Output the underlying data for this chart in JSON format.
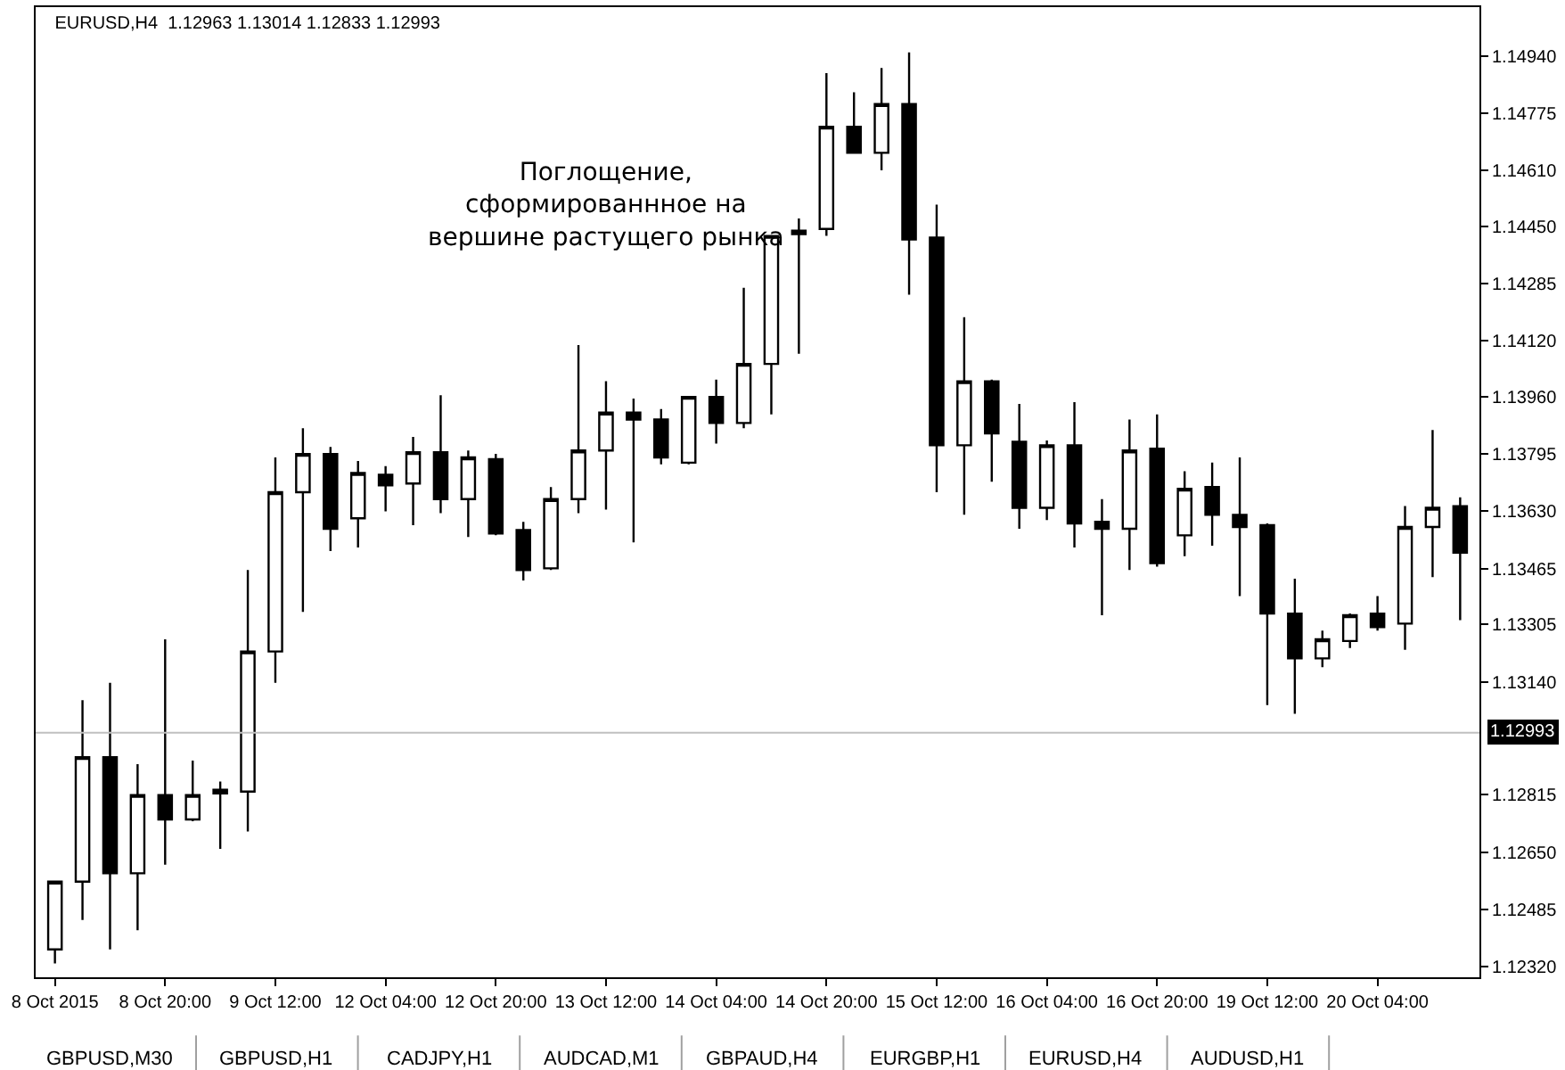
{
  "chart_data": {
    "type": "candlestick",
    "title": "EURUSD,H4  1.12963 1.13014 1.12833 1.12993",
    "categories": [
      "8 Oct 2015",
      null,
      null,
      null,
      "8 Oct 20:00",
      null,
      null,
      null,
      "9 Oct 12:00",
      null,
      null,
      null,
      "12 Oct 04:00",
      null,
      null,
      null,
      "12 Oct 20:00",
      null,
      null,
      null,
      "13 Oct 12:00",
      null,
      null,
      null,
      "14 Oct 04:00",
      null,
      null,
      null,
      "14 Oct 20:00",
      null,
      null,
      null,
      "15 Oct 12:00",
      null,
      null,
      null,
      "16 Oct 04:00",
      null,
      null,
      null,
      "16 Oct 20:00",
      null,
      null,
      null,
      "19 Oct 12:00",
      null,
      null,
      null,
      "20 Oct 04:00",
      null,
      null,
      null
    ],
    "ohlc": [
      [
        1.1237,
        1.12565,
        1.1233,
        1.12565
      ],
      [
        1.12565,
        1.13087,
        1.12455,
        1.12923
      ],
      [
        1.12923,
        1.13137,
        1.1237,
        1.12589
      ],
      [
        1.12589,
        1.12903,
        1.12425,
        1.12814
      ],
      [
        1.12814,
        1.13262,
        1.12614,
        1.12744
      ],
      [
        1.12744,
        1.12913,
        1.12739,
        1.12814
      ],
      [
        1.12819,
        1.12853,
        1.12659,
        1.12829
      ],
      [
        1.12824,
        1.13461,
        1.12709,
        1.13227
      ],
      [
        1.13227,
        1.13785,
        1.13137,
        1.13685
      ],
      [
        1.13685,
        1.13869,
        1.13341,
        1.13795
      ],
      [
        1.13795,
        1.13815,
        1.13516,
        1.1358
      ],
      [
        1.1361,
        1.13775,
        1.13526,
        1.1374
      ],
      [
        1.13735,
        1.1376,
        1.1363,
        1.13705
      ],
      [
        1.1371,
        1.13844,
        1.1359,
        1.138
      ],
      [
        1.138,
        1.13964,
        1.13625,
        1.13665
      ],
      [
        1.13665,
        1.13805,
        1.13556,
        1.13785
      ],
      [
        1.1378,
        1.13795,
        1.13561,
        1.13566
      ],
      [
        1.13576,
        1.136,
        1.13431,
        1.13461
      ],
      [
        1.13466,
        1.137,
        1.13461,
        1.13665
      ],
      [
        1.13665,
        1.14108,
        1.13625,
        1.13805
      ],
      [
        1.13805,
        1.14004,
        1.13635,
        1.13914
      ],
      [
        1.13914,
        1.13954,
        1.13541,
        1.13894
      ],
      [
        1.13894,
        1.13924,
        1.13765,
        1.13785
      ],
      [
        1.1377,
        1.13959,
        1.13765,
        1.13959
      ],
      [
        1.13959,
        1.14009,
        1.13825,
        1.13884
      ],
      [
        1.13884,
        1.14273,
        1.13869,
        1.14054
      ],
      [
        1.14054,
        1.14422,
        1.13909,
        1.14422
      ],
      [
        1.14427,
        1.14472,
        1.14083,
        1.14437
      ],
      [
        1.14442,
        1.1489,
        1.14422,
        1.14736
      ],
      [
        1.14736,
        1.14835,
        1.14661,
        1.14661
      ],
      [
        1.14661,
        1.14905,
        1.14611,
        1.14801
      ],
      [
        1.14801,
        1.1495,
        1.14253,
        1.14412
      ],
      [
        1.14417,
        1.14512,
        1.13685,
        1.1382
      ],
      [
        1.1382,
        1.14188,
        1.1362,
        1.14004
      ],
      [
        1.14004,
        1.14009,
        1.13715,
        1.13854
      ],
      [
        1.1383,
        1.13939,
        1.1358,
        1.1364
      ],
      [
        1.1364,
        1.13834,
        1.13605,
        1.1382
      ],
      [
        1.1382,
        1.13944,
        1.13526,
        1.13595
      ],
      [
        1.136,
        1.13665,
        1.13331,
        1.1358
      ],
      [
        1.1358,
        1.13894,
        1.13461,
        1.13805
      ],
      [
        1.1381,
        1.13909,
        1.13471,
        1.13481
      ],
      [
        1.13561,
        1.13745,
        1.13501,
        1.13695
      ],
      [
        1.137,
        1.1377,
        1.13531,
        1.1362
      ],
      [
        1.1362,
        1.13785,
        1.13386,
        1.13585
      ],
      [
        1.1359,
        1.13595,
        1.13073,
        1.13336
      ],
      [
        1.13336,
        1.13436,
        1.13048,
        1.13207
      ],
      [
        1.13207,
        1.13287,
        1.13182,
        1.13262
      ],
      [
        1.13257,
        1.13336,
        1.13237,
        1.13331
      ],
      [
        1.13336,
        1.13386,
        1.13287,
        1.13297
      ],
      [
        1.13307,
        1.13645,
        1.13232,
        1.13585
      ],
      [
        1.13585,
        1.13864,
        1.13441,
        1.1364
      ],
      [
        1.13645,
        1.1367,
        1.13317,
        1.13511
      ]
    ],
    "ylim": [
      1.1229,
      1.1508
    ],
    "yticks": [
      {
        "value": 1.1494,
        "label": "1.14940"
      },
      {
        "value": 1.14775,
        "label": "1.14775"
      },
      {
        "value": 1.1461,
        "label": "1.14610"
      },
      {
        "value": 1.1445,
        "label": "1.14450"
      },
      {
        "value": 1.14285,
        "label": "1.14285"
      },
      {
        "value": 1.1412,
        "label": "1.14120"
      },
      {
        "value": 1.1396,
        "label": "1.13960"
      },
      {
        "value": 1.13795,
        "label": "1.13795"
      },
      {
        "value": 1.1363,
        "label": "1.13630"
      },
      {
        "value": 1.13465,
        "label": "1.13465"
      },
      {
        "value": 1.13305,
        "label": "1.13305"
      },
      {
        "value": 1.1314,
        "label": "1.13140"
      },
      {
        "value": 1.12815,
        "label": "1.12815"
      },
      {
        "value": 1.1265,
        "label": "1.12650"
      },
      {
        "value": 1.12485,
        "label": "1.12485"
      },
      {
        "value": 1.1232,
        "label": "1.12320"
      }
    ],
    "ref_lines": [
      {
        "axis": "y",
        "value": 1.12993,
        "label": "1.12993",
        "color": "#c0c0c0"
      }
    ],
    "annotations": [
      "Поглощение,\nсформированнное на\nвершине растущего рынка",
      "GBPUSD,M30",
      "GBPUSD,H1",
      "CADJPY,H1",
      "AUDCAD,M1",
      "GBPAUD,H4",
      "EURGBP,H1",
      "EURUSD,H4",
      "AUDUSD,H1"
    ],
    "marker": "none"
  }
}
